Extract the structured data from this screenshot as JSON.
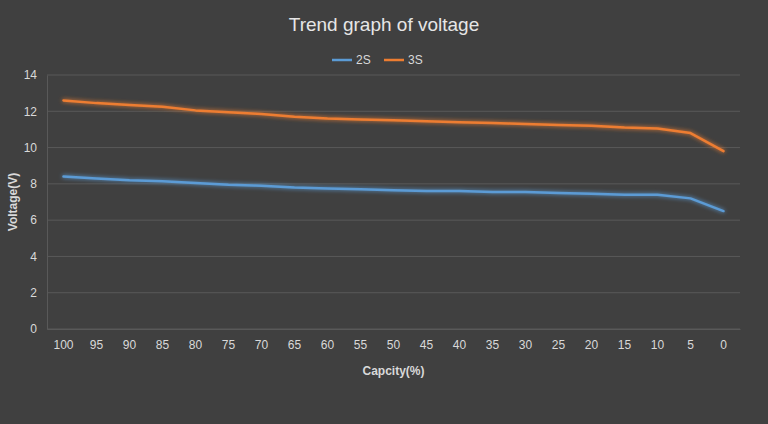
{
  "chart_data": {
    "type": "line",
    "title": "Trend graph of voltage",
    "x_label": "Capcity(%)",
    "y_label": "Voltage(V)",
    "categories": [
      "100",
      "95",
      "90",
      "85",
      "80",
      "75",
      "70",
      "65",
      "60",
      "55",
      "50",
      "45",
      "40",
      "35",
      "30",
      "25",
      "20",
      "15",
      "10",
      "5",
      "0"
    ],
    "series": [
      {
        "name": "2S",
        "color": "#5b9bd5",
        "values": [
          8.4,
          8.3,
          8.2,
          8.15,
          8.05,
          7.95,
          7.9,
          7.8,
          7.75,
          7.7,
          7.65,
          7.6,
          7.6,
          7.55,
          7.55,
          7.5,
          7.45,
          7.4,
          7.4,
          7.2,
          6.5
        ]
      },
      {
        "name": "3S",
        "color": "#ed7d31",
        "values": [
          12.6,
          12.45,
          12.35,
          12.25,
          12.05,
          11.95,
          11.85,
          11.7,
          11.6,
          11.55,
          11.5,
          11.45,
          11.4,
          11.35,
          11.3,
          11.25,
          11.2,
          11.1,
          11.05,
          10.8,
          9.8
        ]
      }
    ],
    "ylim": [
      0,
      14
    ],
    "yticks": [
      0,
      2,
      4,
      6,
      8,
      10,
      12,
      14
    ],
    "grid": true,
    "legend": "top"
  }
}
